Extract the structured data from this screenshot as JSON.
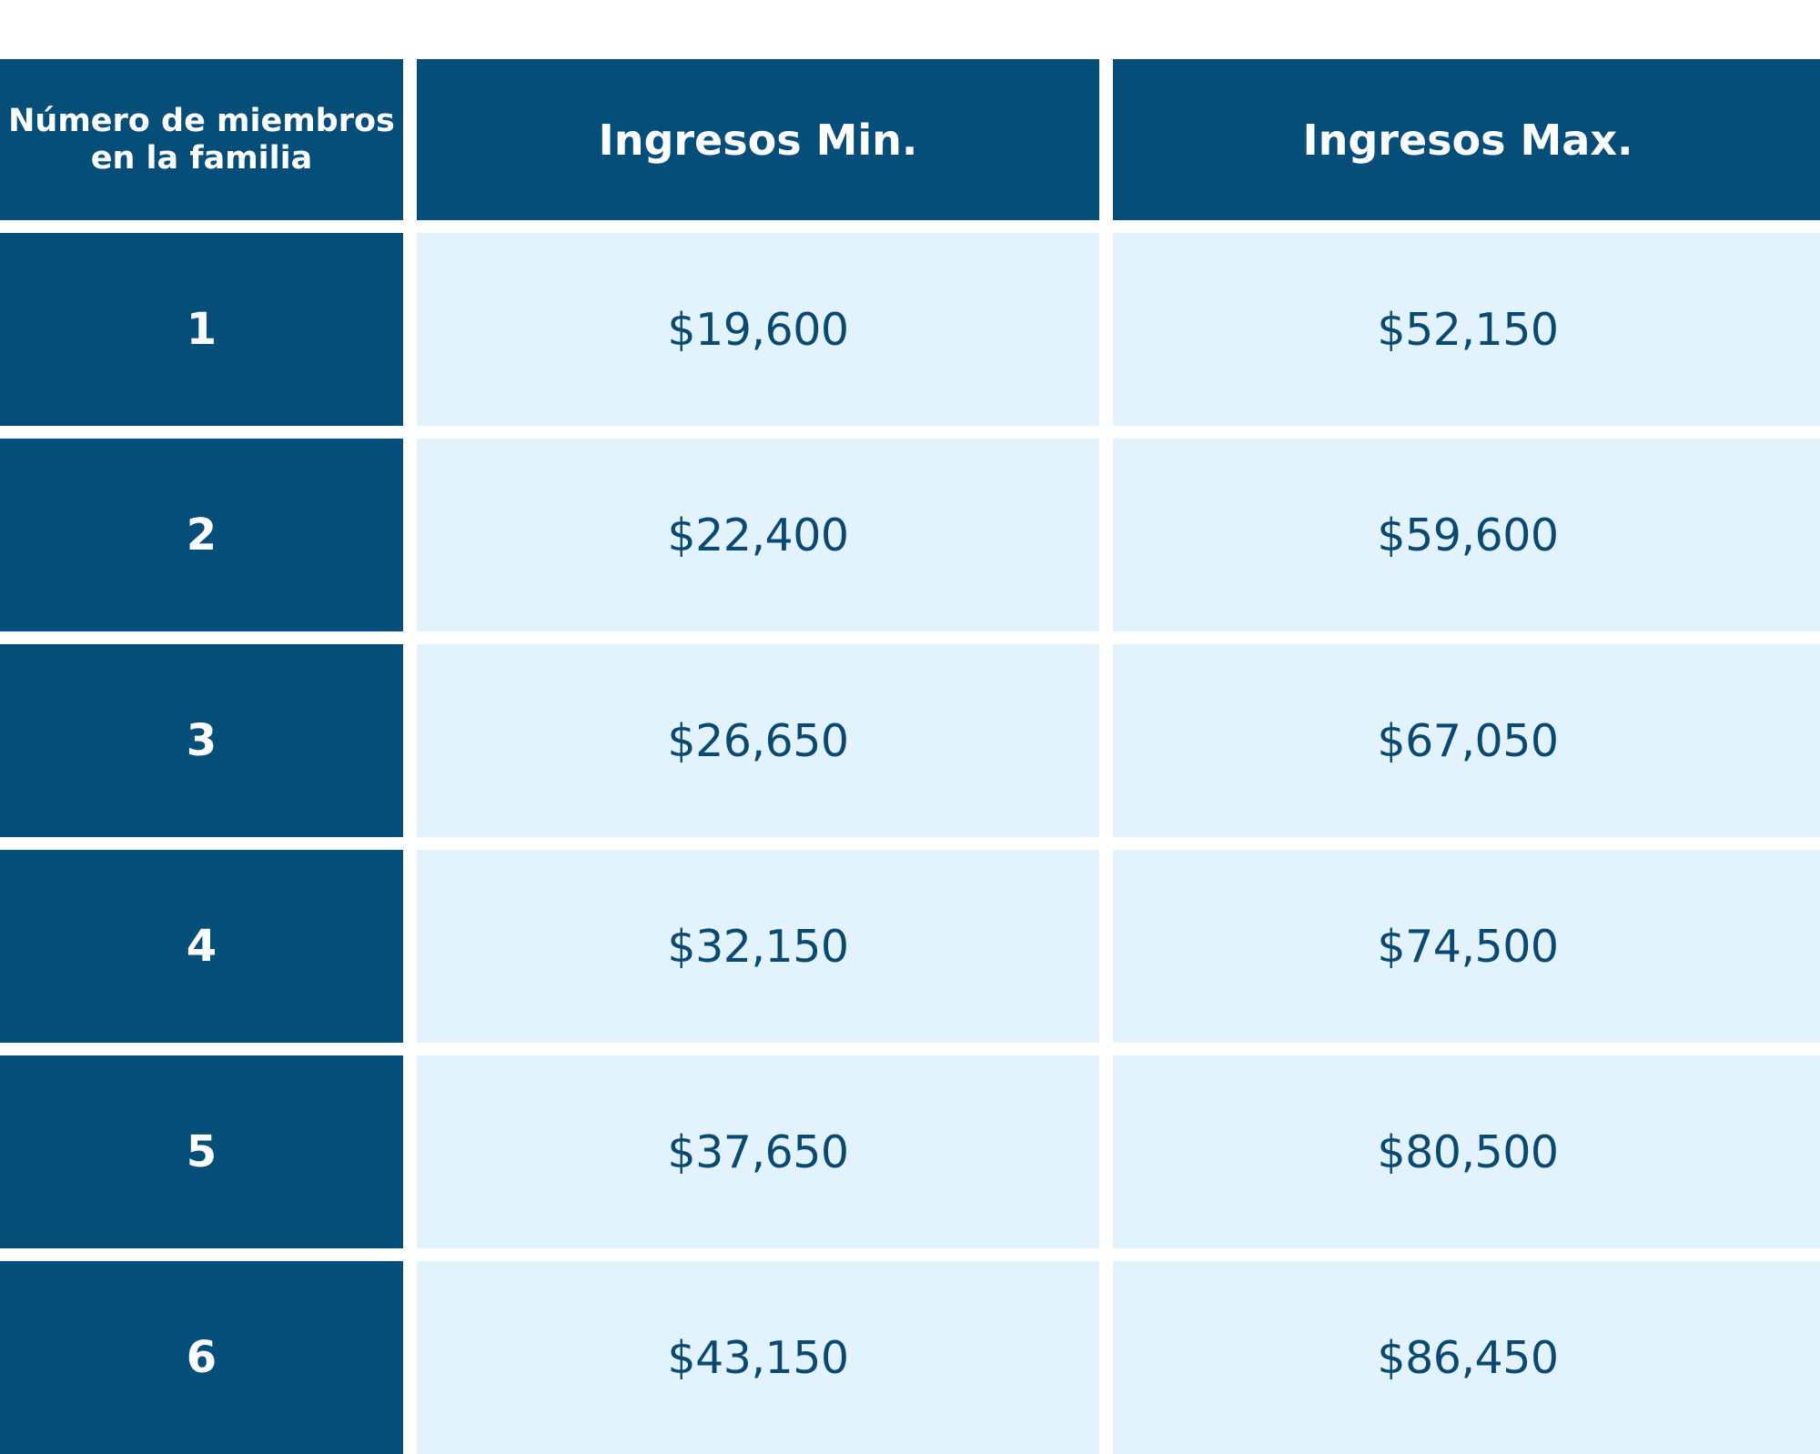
{
  "table": {
    "headers": {
      "members": "Número de miembros\nen la familia",
      "min": "Ingresos Min.",
      "max": "Ingresos Max."
    },
    "rows": [
      {
        "members": "1",
        "min": "$19,600",
        "max": "$52,150"
      },
      {
        "members": "2",
        "min": "$22,400",
        "max": "$59,600"
      },
      {
        "members": "3",
        "min": "$26,650",
        "max": "$67,050"
      },
      {
        "members": "4",
        "min": "$32,150",
        "max": "$74,500"
      },
      {
        "members": "5",
        "min": "$37,650",
        "max": "$80,500"
      },
      {
        "members": "6",
        "min": "$43,150",
        "max": "$86,450"
      }
    ]
  },
  "colors": {
    "header_bg": "#054e7a",
    "cell_bg": "#e2f3fd",
    "value_text": "#0a4a72"
  }
}
